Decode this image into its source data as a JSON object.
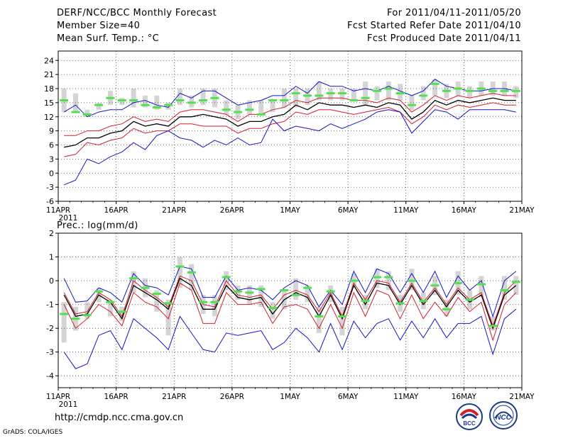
{
  "header": {
    "title": "DERF/NCC/BCC Monthly Forecast",
    "member_size": "Member Size=40",
    "variable": "Mean Surf. Temp.: °C",
    "period": "For 2011/04/11-2011/05/20",
    "started": "Fcst Started Refer Date 2011/04/10",
    "produced": "Fcst Produced Date 2011/04/11"
  },
  "footer": {
    "url": "http://cmdp.ncc.cma.gov.cn",
    "credit": "GrADS: COLA/IGES",
    "logo_bcc": "BCC",
    "logo_ncc": "NCC"
  },
  "colors": {
    "mean": "#000000",
    "spread": "#d21e2d",
    "extreme": "#1414c8",
    "box": "#d4d4d4",
    "median": "#50e050",
    "grid": "#000000"
  },
  "chart_data": [
    {
      "type": "line",
      "title": "Mean Surf. Temp.: °C",
      "x_tick_labels": [
        "11APR",
        "16APR",
        "21APR",
        "26APR",
        "1MAY",
        "6MAY",
        "11MAY",
        "16MAY",
        "21MAY"
      ],
      "x_tick_day_index": [
        0,
        5,
        10,
        15,
        20,
        25,
        30,
        35,
        40
      ],
      "x_year_label": "2011",
      "days": 40,
      "ylim": [
        -6,
        26
      ],
      "y_ticks": [
        -6,
        -3,
        0,
        3,
        6,
        9,
        12,
        15,
        18,
        21,
        24
      ],
      "series": [
        {
          "name": "ensemble-max",
          "role": "extreme",
          "values": [
            13.0,
            14.5,
            12.0,
            13.0,
            13.5,
            13.5,
            15.0,
            15.5,
            14.5,
            14.0,
            17.0,
            16.0,
            17.5,
            17.5,
            16.0,
            14.5,
            15.0,
            15.5,
            16.5,
            16.5,
            18.5,
            17.0,
            19.5,
            18.5,
            18.5,
            17.5,
            18.0,
            17.5,
            18.5,
            17.5,
            16.5,
            17.5,
            20.0,
            18.5,
            18.0,
            17.5,
            17.5,
            18.0,
            18.0,
            17.5
          ]
        },
        {
          "name": "upper-spread",
          "role": "spread",
          "values": [
            8.0,
            8.0,
            9.0,
            9.0,
            10.0,
            10.5,
            12.0,
            11.0,
            11.5,
            11.0,
            13.0,
            13.5,
            13.5,
            13.0,
            12.5,
            11.0,
            12.5,
            12.5,
            13.5,
            14.0,
            15.5,
            15.0,
            16.0,
            16.0,
            16.0,
            15.5,
            15.5,
            15.0,
            16.0,
            15.5,
            13.0,
            14.5,
            16.5,
            15.5,
            16.5,
            16.0,
            16.5,
            17.0,
            16.5,
            16.5
          ]
        },
        {
          "name": "ensemble-mean",
          "role": "mean",
          "values": [
            5.5,
            6.0,
            7.5,
            7.5,
            8.5,
            9.0,
            11.0,
            10.0,
            10.5,
            10.0,
            12.0,
            12.0,
            12.5,
            12.0,
            11.5,
            10.0,
            11.0,
            11.0,
            12.0,
            12.5,
            14.5,
            13.5,
            15.0,
            14.5,
            14.5,
            14.0,
            14.5,
            14.0,
            15.0,
            14.5,
            11.5,
            13.0,
            15.5,
            14.5,
            15.5,
            15.0,
            15.5,
            16.0,
            15.5,
            15.5
          ]
        },
        {
          "name": "lower-spread",
          "role": "spread",
          "values": [
            3.5,
            4.0,
            6.5,
            6.0,
            7.0,
            7.5,
            9.5,
            8.5,
            9.0,
            9.0,
            10.5,
            10.5,
            10.0,
            10.0,
            10.0,
            8.5,
            9.5,
            9.5,
            10.5,
            11.0,
            13.0,
            12.5,
            13.5,
            13.5,
            13.0,
            12.5,
            13.0,
            13.5,
            14.0,
            13.0,
            10.5,
            12.0,
            14.5,
            13.5,
            14.5,
            14.0,
            14.5,
            15.0,
            14.5,
            14.5
          ]
        },
        {
          "name": "ensemble-min",
          "role": "extreme",
          "values": [
            -2.5,
            -1.5,
            3.0,
            2.0,
            3.5,
            4.5,
            6.5,
            5.0,
            8.0,
            9.0,
            7.5,
            7.0,
            5.5,
            7.0,
            6.0,
            7.5,
            6.0,
            6.5,
            11.5,
            9.0,
            10.0,
            9.5,
            9.0,
            10.5,
            9.5,
            10.5,
            11.5,
            13.0,
            13.5,
            13.0,
            8.5,
            11.0,
            13.5,
            13.0,
            11.5,
            13.5,
            13.5,
            13.5,
            13.5,
            13.0
          ]
        }
      ],
      "boxes": {
        "low": [
          13.0,
          13.0,
          12.0,
          13.5,
          14.5,
          14.5,
          14.0,
          14.0,
          13.5,
          13.5,
          14.5,
          14.0,
          14.5,
          14.0,
          12.5,
          11.5,
          12.5,
          12.5,
          13.0,
          14.0,
          14.0,
          14.5,
          15.5,
          15.5,
          15.5,
          15.5,
          14.5,
          15.5,
          15.5,
          15.5,
          13.5,
          15.5,
          16.5,
          16.0,
          16.5,
          16.0,
          16.5,
          16.5,
          16.5,
          16.0
        ],
        "high": [
          18.0,
          17.0,
          13.5,
          15.0,
          17.5,
          16.0,
          18.0,
          16.5,
          16.5,
          15.0,
          18.0,
          16.5,
          18.0,
          18.0,
          15.5,
          14.5,
          15.5,
          15.5,
          15.5,
          18.0,
          18.0,
          18.0,
          19.5,
          18.0,
          18.0,
          18.0,
          19.5,
          18.5,
          19.5,
          19.0,
          16.5,
          18.5,
          20.0,
          19.0,
          19.5,
          18.5,
          19.5,
          19.5,
          19.5,
          18.5
        ]
      },
      "median": [
        15.5,
        13.0,
        12.5,
        14.5,
        16.0,
        15.5,
        15.5,
        14.5,
        14.0,
        14.5,
        15.5,
        15.0,
        15.5,
        16.0,
        13.5,
        13.0,
        13.5,
        12.5,
        15.5,
        15.5,
        17.0,
        16.5,
        16.5,
        17.0,
        17.0,
        15.5,
        16.0,
        17.5,
        18.0,
        17.0,
        14.5,
        16.5,
        19.0,
        17.5,
        18.0,
        17.5,
        18.0,
        17.5,
        17.5,
        17.5
      ]
    },
    {
      "type": "line",
      "title": "Prec.: log(mm/d)",
      "x_tick_labels": [
        "11APR",
        "16APR",
        "21APR",
        "26APR",
        "1MAY",
        "6MAY",
        "11MAY",
        "16MAY",
        "21MAY"
      ],
      "x_tick_day_index": [
        0,
        5,
        10,
        15,
        20,
        25,
        30,
        35,
        40
      ],
      "x_year_label": "2011",
      "days": 40,
      "ylim": [
        -4.5,
        2
      ],
      "y_ticks": [
        -4,
        -3,
        -2,
        -1,
        0,
        1,
        2
      ],
      "series": [
        {
          "name": "ensemble-max",
          "role": "extreme",
          "values": [
            0.1,
            -0.9,
            -0.85,
            -0.3,
            -0.5,
            -0.9,
            0.3,
            -0.2,
            -0.3,
            -0.6,
            0.6,
            0.5,
            -0.7,
            -0.7,
            0.2,
            -0.4,
            -0.3,
            -0.4,
            -0.8,
            -0.3,
            0.0,
            -0.2,
            -1.1,
            -0.4,
            -1.0,
            0.4,
            -0.5,
            0.5,
            0.3,
            -0.5,
            0.3,
            -0.5,
            0.4,
            -0.7,
            0.2,
            -0.4,
            0.0,
            -1.5,
            0.0,
            0.4
          ]
        },
        {
          "name": "upper-spread",
          "role": "spread",
          "values": [
            -0.5,
            -1.4,
            -1.3,
            -0.5,
            -0.8,
            -1.5,
            0.0,
            -0.4,
            -0.7,
            -1.1,
            0.2,
            0.0,
            -1.0,
            -1.1,
            0.0,
            -0.6,
            -0.7,
            -0.6,
            -1.2,
            -0.6,
            -0.4,
            -0.6,
            -1.3,
            -0.5,
            -1.5,
            -0.1,
            -0.8,
            0.0,
            -0.1,
            -0.9,
            -0.1,
            -0.9,
            -0.3,
            -1.0,
            -0.3,
            -0.8,
            -0.5,
            -1.9,
            -0.5,
            0.0
          ]
        },
        {
          "name": "ensemble-mean",
          "role": "mean",
          "values": [
            -0.6,
            -1.5,
            -1.4,
            -0.6,
            -0.9,
            -1.6,
            -0.2,
            -0.5,
            -0.8,
            -1.2,
            0.1,
            -0.2,
            -1.2,
            -1.2,
            -0.2,
            -0.7,
            -0.8,
            -0.7,
            -1.4,
            -0.8,
            -0.5,
            -0.7,
            -1.5,
            -0.6,
            -1.6,
            -0.2,
            -1.0,
            -0.1,
            -0.2,
            -1.0,
            -0.2,
            -1.0,
            -0.4,
            -1.1,
            -0.4,
            -0.9,
            -0.6,
            -2.0,
            -0.6,
            -0.2
          ]
        },
        {
          "name": "lower-spread",
          "role": "spread",
          "values": [
            -1.0,
            -2.0,
            -1.6,
            -1.0,
            -1.3,
            -1.9,
            -0.5,
            -0.9,
            -1.1,
            -1.6,
            -0.1,
            -0.4,
            -1.8,
            -1.8,
            -0.5,
            -1.0,
            -1.0,
            -0.9,
            -1.8,
            -1.1,
            -1.0,
            -1.2,
            -2.0,
            -1.0,
            -2.0,
            -0.5,
            -1.5,
            -0.4,
            -0.6,
            -1.6,
            -0.6,
            -1.6,
            -0.9,
            -1.5,
            -0.7,
            -1.3,
            -0.9,
            -2.5,
            -1.0,
            -0.5
          ]
        },
        {
          "name": "ensemble-min",
          "role": "extreme",
          "values": [
            -3.0,
            -3.7,
            -3.5,
            -2.3,
            -2.1,
            -2.9,
            -1.6,
            -2.0,
            -2.4,
            -2.9,
            -1.5,
            -2.2,
            -2.9,
            -3.0,
            -2.2,
            -2.3,
            -2.2,
            -2.1,
            -2.9,
            -2.6,
            -2.0,
            -2.4,
            -3.0,
            -1.8,
            -2.9,
            -1.7,
            -2.4,
            -1.8,
            -1.6,
            -2.5,
            -1.7,
            -2.4,
            -1.6,
            -2.4,
            -1.8,
            -1.8,
            -1.5,
            -3.1,
            -1.6,
            -1.2
          ]
        }
      ],
      "boxes": {
        "low": [
          -2.6,
          -2.1,
          -1.6,
          -0.9,
          -1.5,
          -1.7,
          -0.5,
          -0.7,
          -1.3,
          -2.3,
          -0.3,
          -0.4,
          -1.4,
          -1.5,
          -0.4,
          -0.8,
          -1.0,
          -1.1,
          -1.6,
          -1.2,
          -0.8,
          -0.9,
          -2.2,
          -0.9,
          -2.3,
          -0.3,
          -1.2,
          -0.3,
          -0.4,
          -1.3,
          -0.4,
          -1.2,
          -0.6,
          -1.5,
          -0.6,
          -1.2,
          -0.7,
          -2.1,
          -0.8,
          -0.6
        ],
        "high": [
          -0.9,
          -1.1,
          -0.9,
          -0.3,
          -0.8,
          -1.1,
          0.4,
          0.1,
          -0.4,
          -0.8,
          1.0,
          0.7,
          -0.6,
          -0.6,
          0.4,
          -0.2,
          -0.2,
          -0.2,
          -0.9,
          -0.4,
          0.1,
          -0.2,
          -1.1,
          -0.2,
          -1.1,
          0.3,
          -0.6,
          0.5,
          0.4,
          -0.6,
          0.5,
          -0.5,
          0.2,
          -0.8,
          0.4,
          -0.4,
          0.2,
          -1.5,
          0.2,
          0.2
        ]
      },
      "median": [
        -1.4,
        -1.6,
        -1.45,
        -0.45,
        -0.9,
        -1.3,
        0.1,
        -0.3,
        -0.55,
        -0.95,
        0.6,
        0.35,
        -0.9,
        -0.9,
        0.15,
        -0.45,
        -0.5,
        -0.35,
        -1.15,
        -0.4,
        -0.6,
        -0.3,
        -1.5,
        -0.45,
        -1.5,
        0.0,
        -0.85,
        0.15,
        0.15,
        -0.95,
        0.0,
        -0.85,
        -0.2,
        -1.2,
        -0.1,
        -0.8,
        -0.15,
        -1.9,
        -0.4,
        -0.05
      ]
    }
  ]
}
